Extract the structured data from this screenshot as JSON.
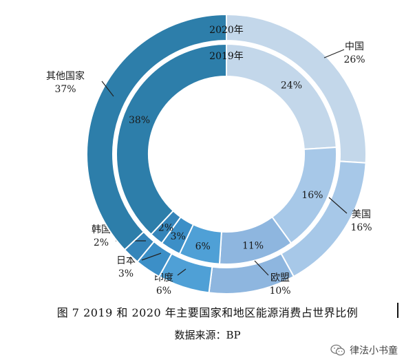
{
  "chart_data": {
    "type": "donut",
    "title": "图 7 2019 和 2020 年主要国家和地区能源消费占世界比例",
    "source": "数据来源：BP",
    "rings": [
      {
        "name": "2019年",
        "position": "inner",
        "slices": [
          {
            "category": "中国",
            "value": 24,
            "label": "24%"
          },
          {
            "category": "美国",
            "value": 16,
            "label": "16%"
          },
          {
            "category": "欧盟",
            "value": 11,
            "label": "11%"
          },
          {
            "category": "印度",
            "value": 6,
            "label": "6%"
          },
          {
            "category": "日本",
            "value": 3,
            "label": "3%"
          },
          {
            "category": "韩国",
            "value": 2,
            "label": "2%"
          },
          {
            "category": "其他国家",
            "value": 38,
            "label": "38%"
          }
        ]
      },
      {
        "name": "2020年",
        "position": "outer",
        "slices": [
          {
            "category": "中国",
            "value": 26,
            "label": "26%"
          },
          {
            "category": "美国",
            "value": 16,
            "label": "16%"
          },
          {
            "category": "欧盟",
            "value": 10,
            "label": "10%"
          },
          {
            "category": "印度",
            "value": 6,
            "label": "6%"
          },
          {
            "category": "日本",
            "value": 3,
            "label": "3%"
          },
          {
            "category": "韩国",
            "value": 2,
            "label": "2%"
          },
          {
            "category": "其他国家",
            "value": 37,
            "label": "37%"
          }
        ]
      }
    ],
    "colors": {
      "中国": "#c3d7ea",
      "美国": "#a7c8e8",
      "欧盟": "#8eb6df",
      "印度": "#4fa0d6",
      "日本": "#3c8fc7",
      "韩国": "#3585ba",
      "其他国家": "#2d7eaa"
    }
  },
  "caption": {
    "figure_title": "图 7 2019 和 2020 年主要国家和地区能源消费占世界比例",
    "source": "数据来源：BP"
  },
  "watermark": {
    "text": "律法小书童",
    "icon": "wechat-icon"
  }
}
